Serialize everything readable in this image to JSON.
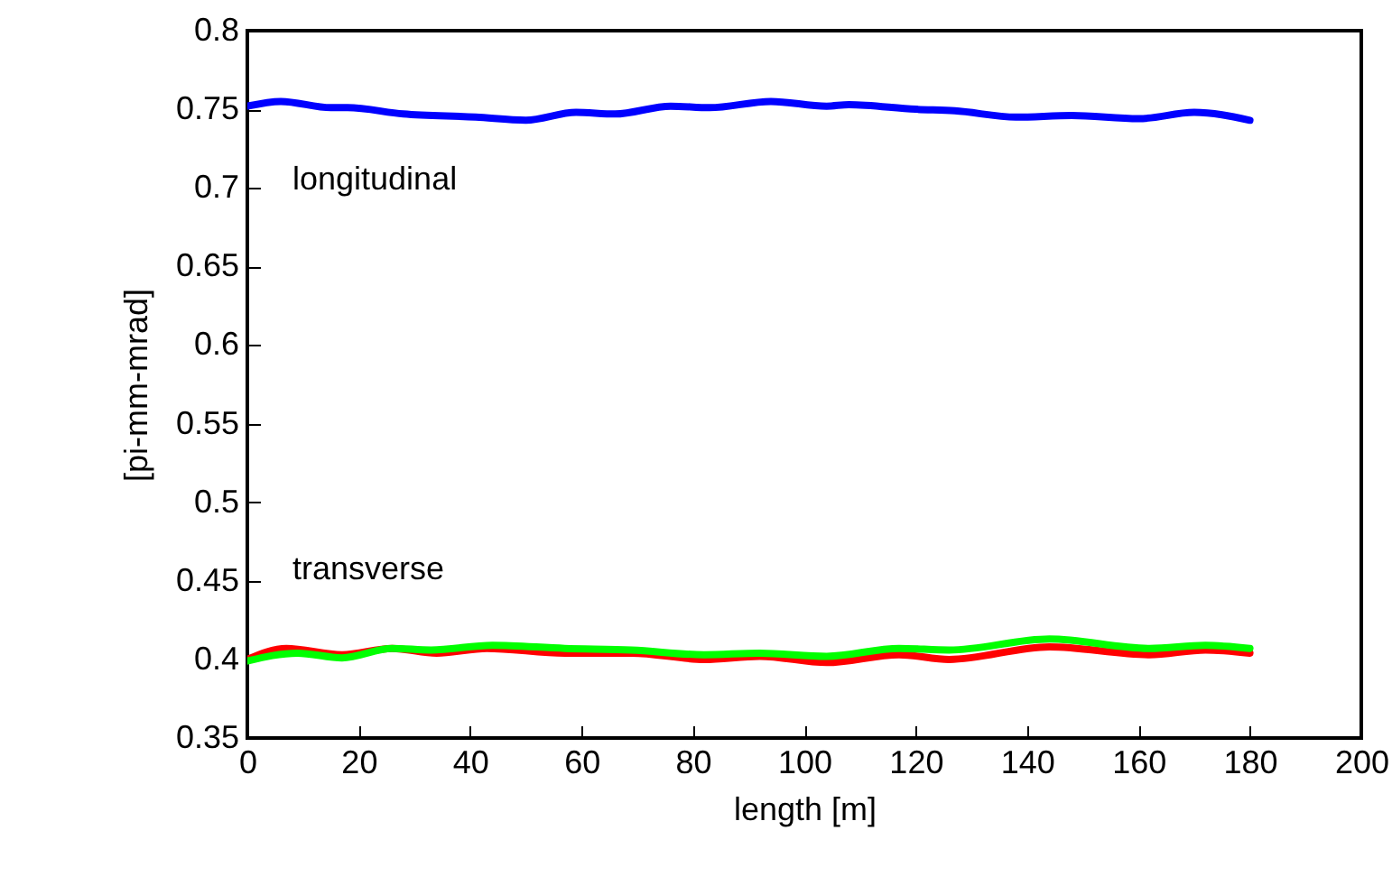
{
  "chart_data": {
    "type": "line",
    "xlabel": "length [m]",
    "ylabel": "[pi-mm-mrad]",
    "xlim": [
      0,
      200
    ],
    "xticks": [
      0,
      20,
      40,
      60,
      80,
      100,
      120,
      140,
      160,
      180,
      200
    ],
    "ylim": [
      0.35,
      0.8
    ],
    "yticks": [
      0.35,
      0.4,
      0.45,
      0.5,
      0.55,
      0.6,
      0.65,
      0.7,
      0.75,
      0.8
    ],
    "grid": false,
    "marker": "none",
    "line_style": "solid",
    "annotations": [
      "longitudinal",
      "transverse"
    ],
    "series": [
      {
        "color": "#0000ff",
        "x": [
          0,
          6,
          15,
          18,
          28,
          41,
          50,
          59,
          66,
          76,
          83,
          94,
          104,
          108,
          120,
          127,
          138,
          148,
          160,
          170,
          180
        ],
        "values": [
          0.752,
          0.755,
          0.751,
          0.751,
          0.747,
          0.745,
          0.743,
          0.748,
          0.747,
          0.752,
          0.751,
          0.755,
          0.752,
          0.753,
          0.75,
          0.749,
          0.745,
          0.746,
          0.744,
          0.748,
          0.743
        ]
      },
      {
        "color": "#ff0000",
        "x": [
          0,
          7,
          17,
          26,
          34,
          43,
          57,
          69,
          82,
          92,
          104,
          117,
          126,
          144,
          162,
          172,
          180
        ],
        "values": [
          0.4,
          0.407,
          0.403,
          0.407,
          0.404,
          0.407,
          0.404,
          0.404,
          0.4,
          0.402,
          0.398,
          0.403,
          0.4,
          0.408,
          0.403,
          0.406,
          0.404
        ]
      },
      {
        "color": "#00ff00",
        "x": [
          0,
          9,
          17,
          26,
          33,
          44,
          57,
          69,
          82,
          92,
          104,
          117,
          126,
          144,
          162,
          172,
          180
        ],
        "values": [
          0.399,
          0.404,
          0.401,
          0.407,
          0.406,
          0.409,
          0.407,
          0.406,
          0.403,
          0.404,
          0.402,
          0.407,
          0.406,
          0.413,
          0.407,
          0.409,
          0.407
        ]
      }
    ]
  }
}
